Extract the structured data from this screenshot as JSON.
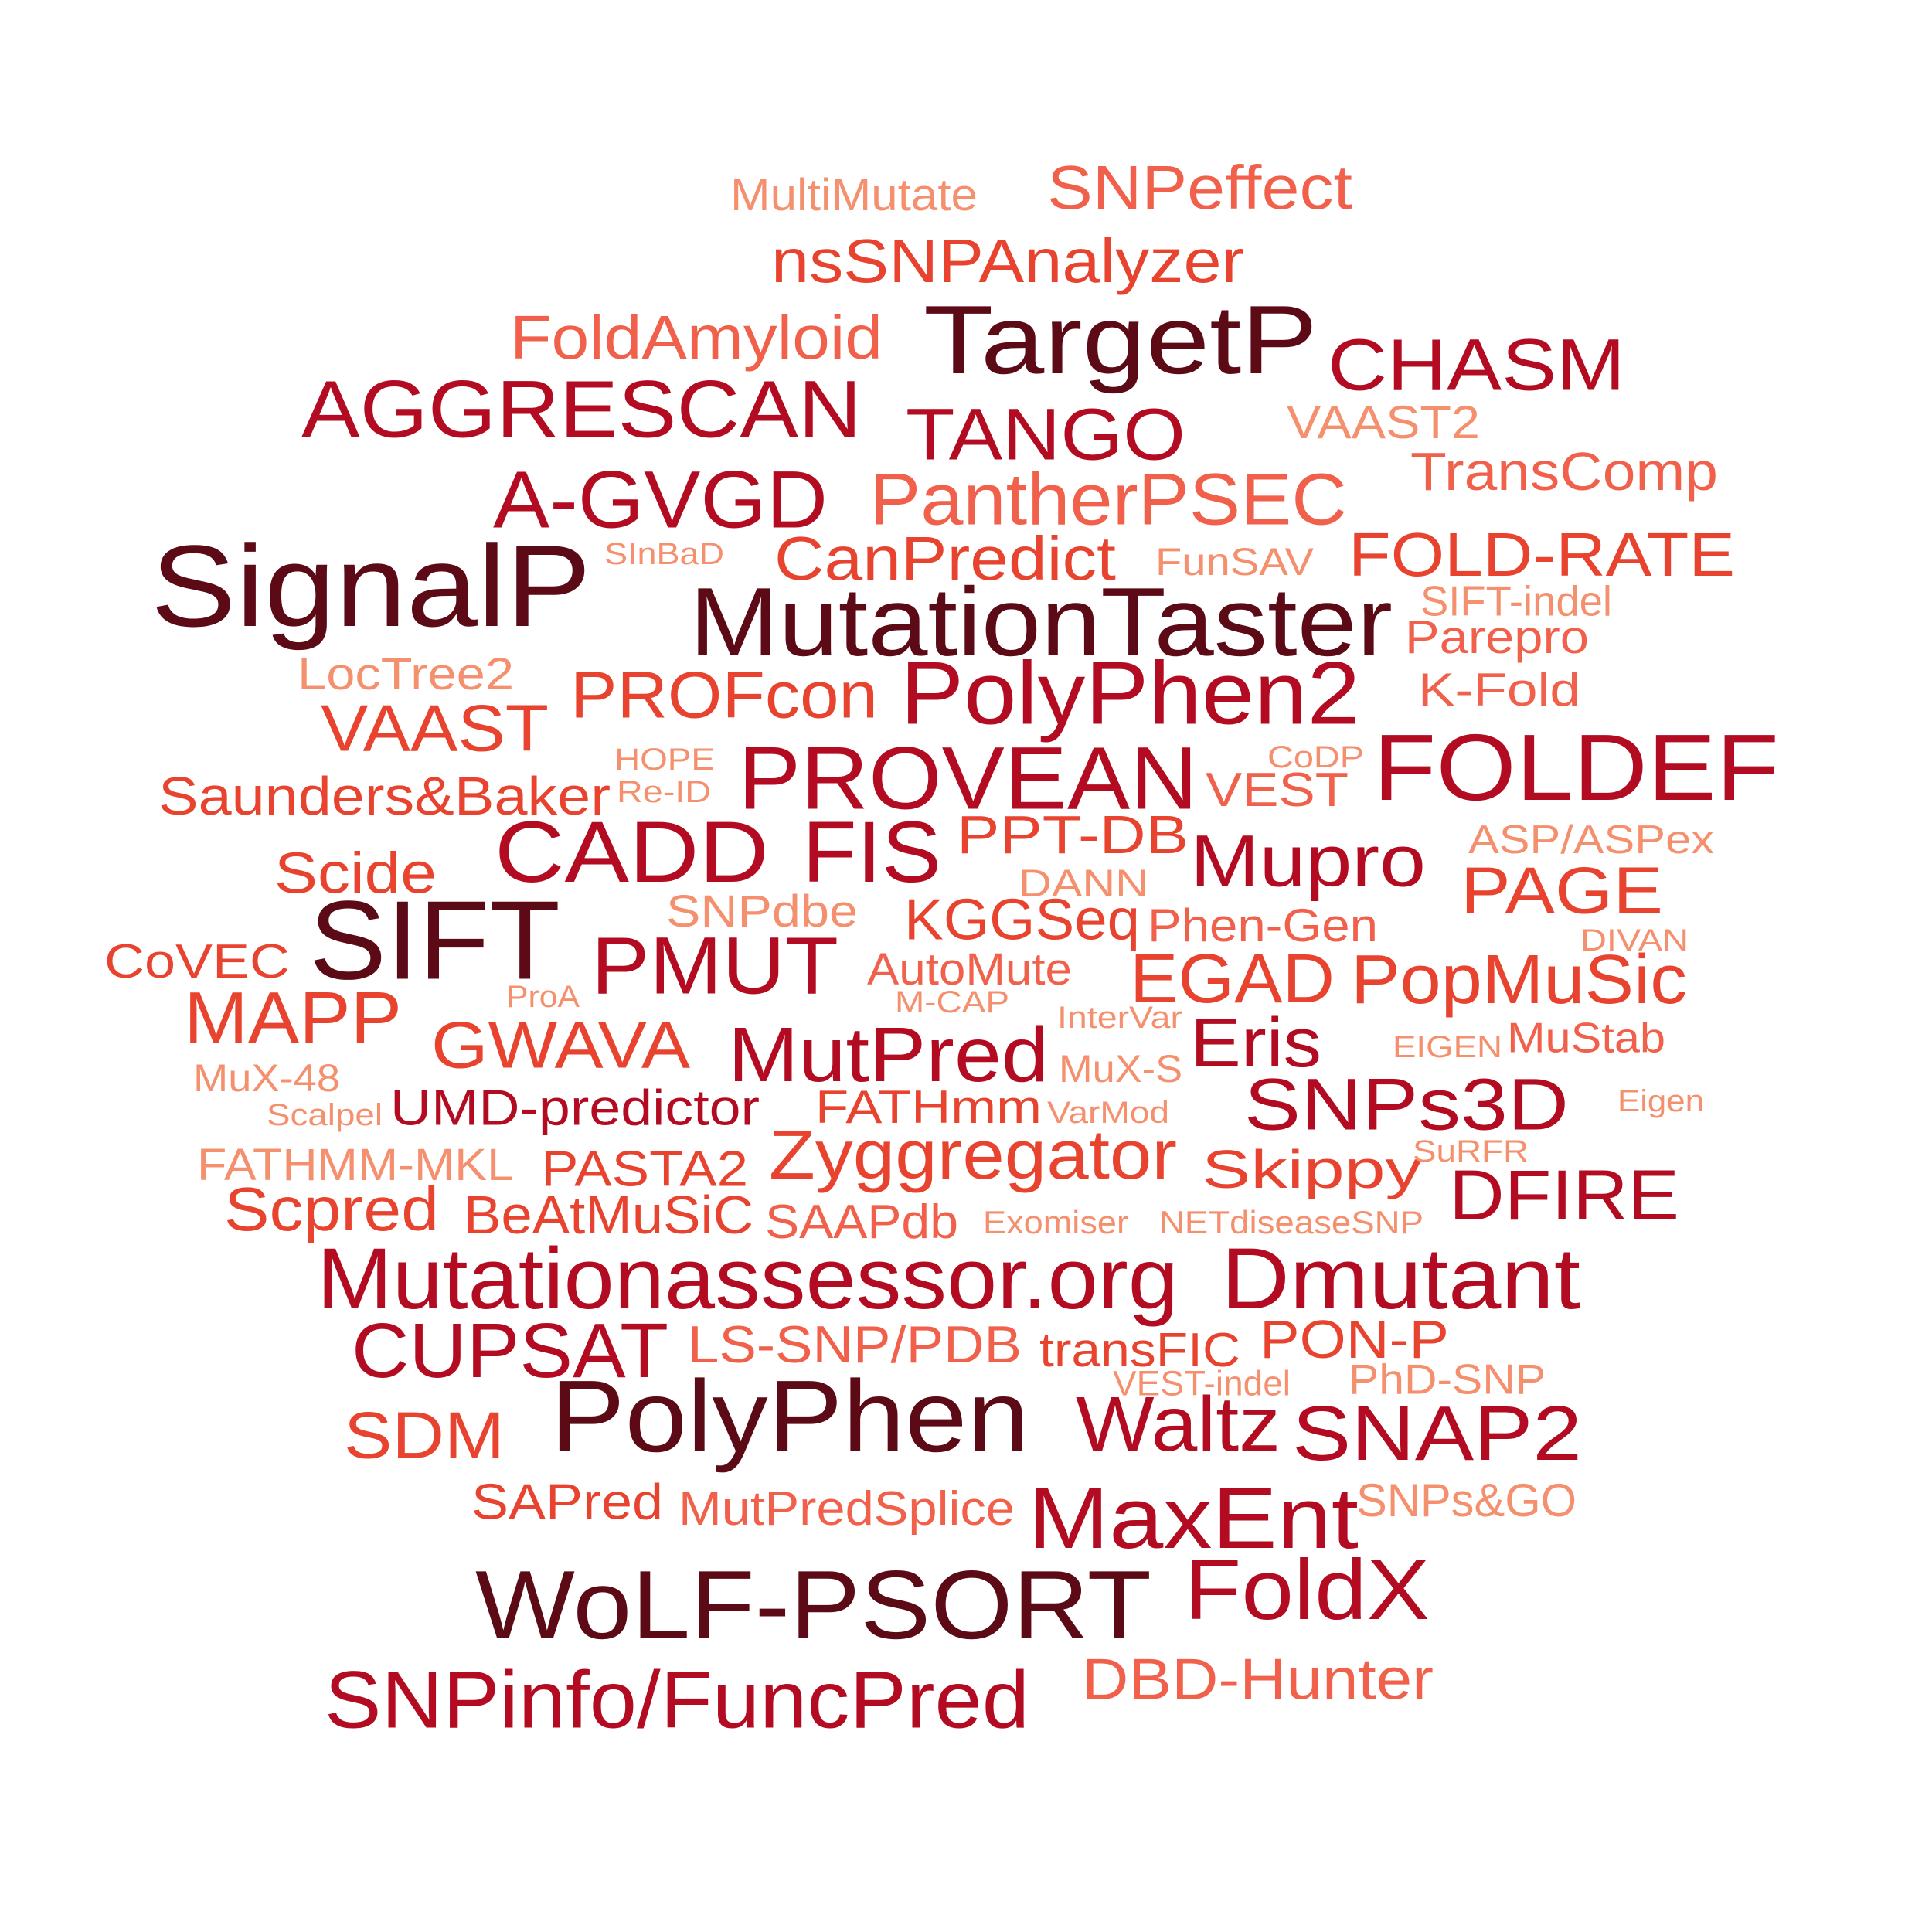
{
  "palette": {
    "c1": "#5c0a16",
    "c2": "#b30c22",
    "c3": "#e8432f",
    "c4": "#f0604a",
    "c5": "#f5906f"
  },
  "words": [
    {
      "text": "MultiMutate",
      "tier": "c5"
    },
    {
      "text": "SNPeffect",
      "tier": "c4"
    },
    {
      "text": "nsSNPAnalyzer",
      "tier": "c3"
    },
    {
      "text": "FoldAmyloid",
      "tier": "c4"
    },
    {
      "text": "TargetP",
      "tier": "c1"
    },
    {
      "text": "CHASM",
      "tier": "c2"
    },
    {
      "text": "AGGRESCAN",
      "tier": "c2"
    },
    {
      "text": "TANGO",
      "tier": "c2"
    },
    {
      "text": "VAAST2",
      "tier": "c5"
    },
    {
      "text": "TransComp",
      "tier": "c4"
    },
    {
      "text": "A-GVGD",
      "tier": "c2"
    },
    {
      "text": "PantherPSEC",
      "tier": "c4"
    },
    {
      "text": "SInBaD",
      "tier": "c5"
    },
    {
      "text": "CanPredict",
      "tier": "c3"
    },
    {
      "text": "FunSAV",
      "tier": "c5"
    },
    {
      "text": "FOLD-RATE",
      "tier": "c3"
    },
    {
      "text": "SignalP",
      "tier": "c1"
    },
    {
      "text": "MutationTaster",
      "tier": "c1"
    },
    {
      "text": "SIFT-indel",
      "tier": "c5"
    },
    {
      "text": "Parepro",
      "tier": "c4"
    },
    {
      "text": "LocTree2",
      "tier": "c5"
    },
    {
      "text": "PROFcon",
      "tier": "c3"
    },
    {
      "text": "PolyPhen2",
      "tier": "c2"
    },
    {
      "text": "K-Fold",
      "tier": "c4"
    },
    {
      "text": "VAAST",
      "tier": "c3"
    },
    {
      "text": "HOPE",
      "tier": "c5"
    },
    {
      "text": "Re-ID",
      "tier": "c5"
    },
    {
      "text": "PROVEAN",
      "tier": "c2"
    },
    {
      "text": "CoDP",
      "tier": "c5"
    },
    {
      "text": "VEST",
      "tier": "c4"
    },
    {
      "text": "FOLDEF",
      "tier": "c2"
    },
    {
      "text": "Saunders&Baker",
      "tier": "c3"
    },
    {
      "text": "CADD",
      "tier": "c2"
    },
    {
      "text": "FIS",
      "tier": "c2"
    },
    {
      "text": "PPT-DB",
      "tier": "c3"
    },
    {
      "text": "Mupro",
      "tier": "c2"
    },
    {
      "text": "ASP/ASPex",
      "tier": "c5"
    },
    {
      "text": "Scide",
      "tier": "c3"
    },
    {
      "text": "DANN",
      "tier": "c5"
    },
    {
      "text": "PAGE",
      "tier": "c3"
    },
    {
      "text": "SNPdbe",
      "tier": "c5"
    },
    {
      "text": "SIFT",
      "tier": "c1"
    },
    {
      "text": "KGGSeq",
      "tier": "c3"
    },
    {
      "text": "Phen-Gen",
      "tier": "c4"
    },
    {
      "text": "DIVAN",
      "tier": "c5"
    },
    {
      "text": "CoVEC",
      "tier": "c3"
    },
    {
      "text": "PMUT",
      "tier": "c2"
    },
    {
      "text": "AutoMute",
      "tier": "c4"
    },
    {
      "text": "EGAD",
      "tier": "c3"
    },
    {
      "text": "PopMuSic",
      "tier": "c3"
    },
    {
      "text": "ProA",
      "tier": "c5"
    },
    {
      "text": "M-CAP",
      "tier": "c5"
    },
    {
      "text": "MAPP",
      "tier": "c3"
    },
    {
      "text": "InterVar",
      "tier": "c5"
    },
    {
      "text": "GWAVA",
      "tier": "c3"
    },
    {
      "text": "MutPred",
      "tier": "c2"
    },
    {
      "text": "Eris",
      "tier": "c2"
    },
    {
      "text": "MuStab",
      "tier": "c4"
    },
    {
      "text": "EIGEN",
      "tier": "c5"
    },
    {
      "text": "MuX-48",
      "tier": "c5"
    },
    {
      "text": "MuX-S",
      "tier": "c5"
    },
    {
      "text": "Scalpel",
      "tier": "c5"
    },
    {
      "text": "UMD-predictor",
      "tier": "c2"
    },
    {
      "text": "FATHmm",
      "tier": "c3"
    },
    {
      "text": "VarMod",
      "tier": "c5"
    },
    {
      "text": "SNPs3D",
      "tier": "c2"
    },
    {
      "text": "Eigen",
      "tier": "c5"
    },
    {
      "text": "FATHMM-MKL",
      "tier": "c5"
    },
    {
      "text": "PASTA2",
      "tier": "c3"
    },
    {
      "text": "Zyggregator",
      "tier": "c3"
    },
    {
      "text": "Skippy",
      "tier": "c3"
    },
    {
      "text": "SuRFR",
      "tier": "c5"
    },
    {
      "text": "Scpred",
      "tier": "c3"
    },
    {
      "text": "BeAtMuSiC",
      "tier": "c3"
    },
    {
      "text": "SAAPdb",
      "tier": "c4"
    },
    {
      "text": "Exomiser",
      "tier": "c5"
    },
    {
      "text": "NETdiseaseSNP",
      "tier": "c5"
    },
    {
      "text": "DFIRE",
      "tier": "c2"
    },
    {
      "text": "Mutationassessor.org",
      "tier": "c2"
    },
    {
      "text": "Dmutant",
      "tier": "c2"
    },
    {
      "text": "CUPSAT",
      "tier": "c2"
    },
    {
      "text": "LS-SNP/PDB",
      "tier": "c4"
    },
    {
      "text": "transFIC",
      "tier": "c3"
    },
    {
      "text": "PON-P",
      "tier": "c3"
    },
    {
      "text": "VEST-indel",
      "tier": "c5"
    },
    {
      "text": "PhD-SNP",
      "tier": "c5"
    },
    {
      "text": "PolyPhen",
      "tier": "c1"
    },
    {
      "text": "Waltz",
      "tier": "c2"
    },
    {
      "text": "SNAP2",
      "tier": "c2"
    },
    {
      "text": "SDM",
      "tier": "c3"
    },
    {
      "text": "SAPred",
      "tier": "c3"
    },
    {
      "text": "MutPredSplice",
      "tier": "c4"
    },
    {
      "text": "MaxEnt",
      "tier": "c2"
    },
    {
      "text": "SNPs&GO",
      "tier": "c5"
    },
    {
      "text": "WoLF-PSORT",
      "tier": "c1"
    },
    {
      "text": "FoldX",
      "tier": "c2"
    },
    {
      "text": "DBD-Hunter",
      "tier": "c4"
    },
    {
      "text": "SNPinfo/FuncPred",
      "tier": "c2"
    }
  ]
}
